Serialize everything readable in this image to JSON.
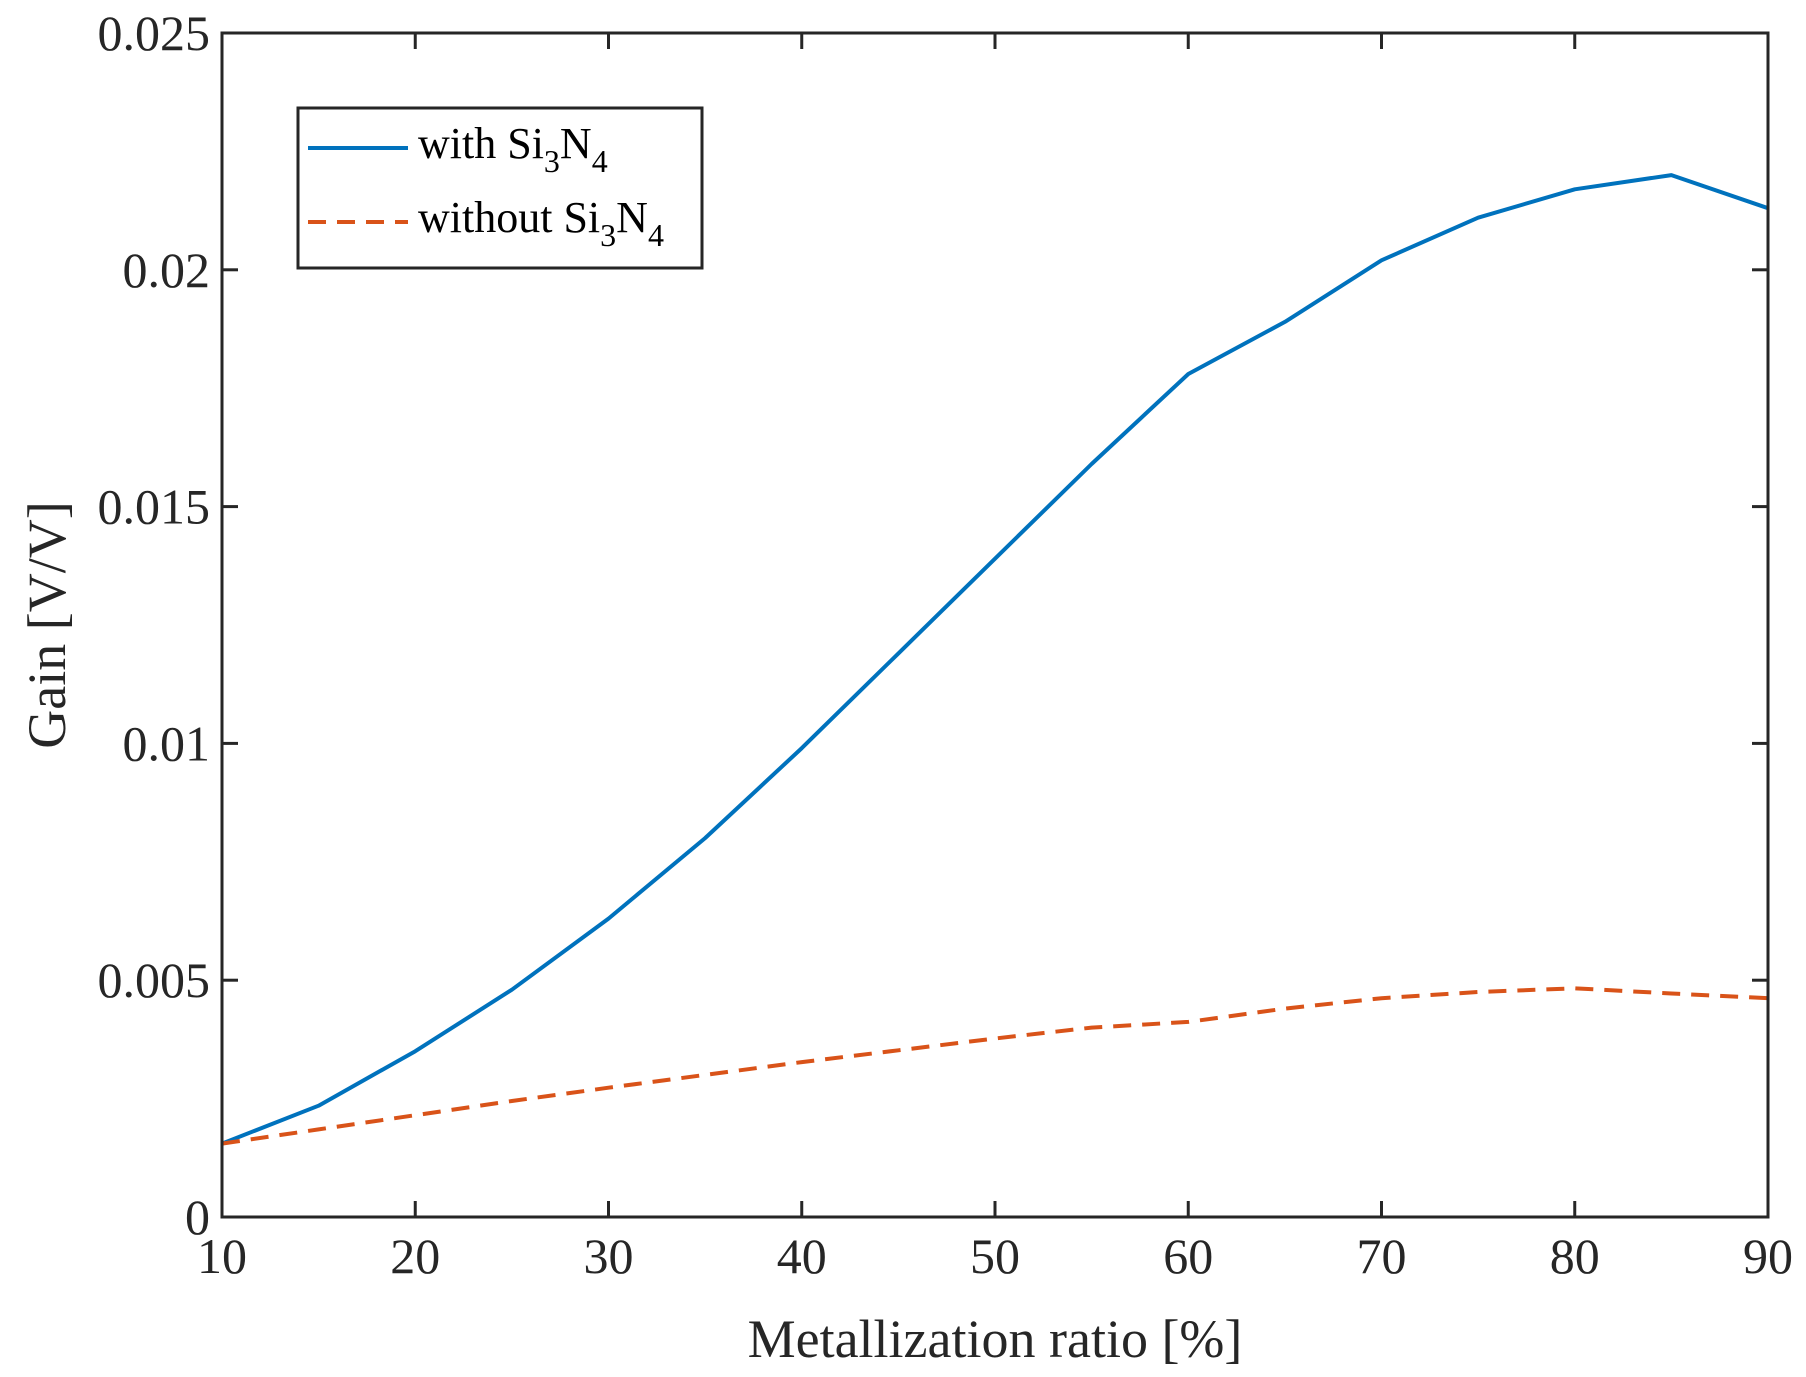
{
  "chart_data": {
    "type": "line",
    "xlabel": "Metallization ratio [%]",
    "ylabel": "Gain [V/V]",
    "xlim": [
      10,
      90
    ],
    "ylim": [
      0,
      0.025
    ],
    "xticks": [
      10,
      20,
      30,
      40,
      50,
      60,
      70,
      80,
      90
    ],
    "xtick_labels": [
      "10",
      "20",
      "30",
      "40",
      "50",
      "60",
      "70",
      "80",
      "90"
    ],
    "yticks": [
      0,
      0.005,
      0.01,
      0.015,
      0.02,
      0.025
    ],
    "ytick_labels": [
      "0",
      "0.005",
      "0.01",
      "0.015",
      "0.02",
      "0.025"
    ],
    "grid": false,
    "legend_position": "top-left",
    "series": [
      {
        "name": "with Si3N4",
        "label_base": "with Si",
        "label_sub1": "3",
        "label_mid": "N",
        "label_sub2": "4",
        "color": "#0072BD",
        "style": "solid",
        "x": [
          10,
          15,
          20,
          25,
          30,
          35,
          40,
          45,
          50,
          55,
          60,
          65,
          70,
          75,
          80,
          85,
          90
        ],
        "values": [
          0.00155,
          0.00235,
          0.0035,
          0.0048,
          0.0063,
          0.008,
          0.0099,
          0.0119,
          0.0139,
          0.0159,
          0.0178,
          0.0189,
          0.0202,
          0.0211,
          0.0217,
          0.022,
          0.0213
        ]
      },
      {
        "name": "without Si3N4",
        "label_base": "without Si",
        "label_sub1": "3",
        "label_mid": "N",
        "label_sub2": "4",
        "color": "#D95319",
        "style": "dashed",
        "x": [
          10,
          15,
          20,
          25,
          30,
          35,
          40,
          45,
          50,
          55,
          60,
          65,
          70,
          75,
          80,
          85,
          90
        ],
        "values": [
          0.00155,
          0.00185,
          0.00215,
          0.00245,
          0.00273,
          0.003,
          0.00327,
          0.00352,
          0.00377,
          0.004,
          0.00412,
          0.0044,
          0.00462,
          0.00475,
          0.00483,
          0.00472,
          0.00462
        ]
      }
    ]
  }
}
